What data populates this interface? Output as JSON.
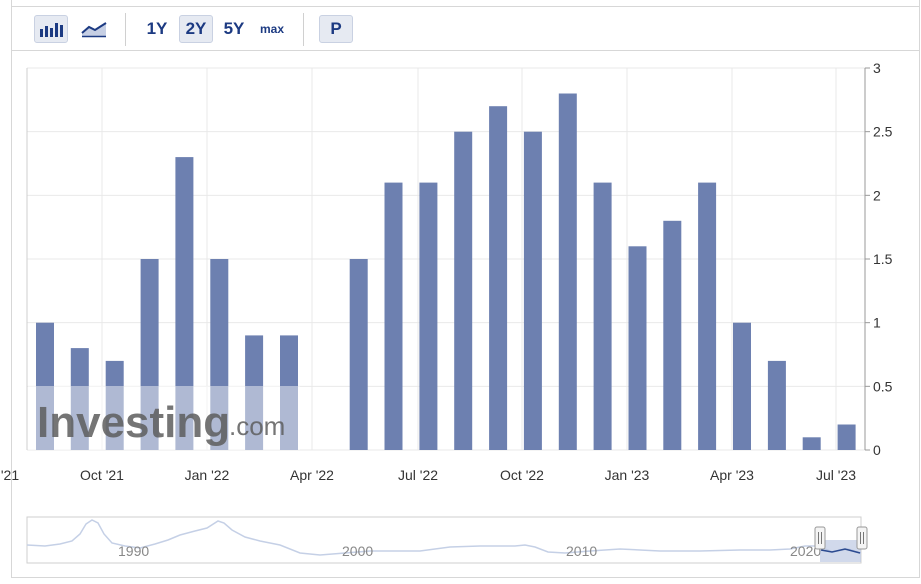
{
  "toolbar": {
    "view_buttons": [
      {
        "name": "bar-chart-view",
        "icon": "bar-chart-icon",
        "active": true
      },
      {
        "name": "line-chart-view",
        "icon": "line-chart-icon",
        "active": false
      }
    ],
    "ranges": [
      {
        "label": "1Y",
        "active": false
      },
      {
        "label": "2Y",
        "active": true
      },
      {
        "label": "5Y",
        "active": false
      },
      {
        "label": "max",
        "active": false
      }
    ],
    "extra_label": "P"
  },
  "watermark": {
    "brand": "Investing",
    "suffix": ".com"
  },
  "colors": {
    "bar": "#6d80b0",
    "grid": "#e9e9e9",
    "accent": "#1c3a82"
  },
  "chart_data": {
    "type": "bar",
    "x_ticks": [
      "'21",
      "Oct '21",
      "Jan '22",
      "Apr '22",
      "Jul '22",
      "Oct '22",
      "Jan '23",
      "Apr '23",
      "Jul '23"
    ],
    "values": [
      1.0,
      0.8,
      0.7,
      1.5,
      2.3,
      1.5,
      0.9,
      0.9,
      0.0,
      1.5,
      2.1,
      2.1,
      2.5,
      2.7,
      2.5,
      2.8,
      2.1,
      1.6,
      1.8,
      2.1,
      1.0,
      0.7,
      0.1,
      0.2
    ],
    "y_ticks": [
      "3",
      "2.5",
      "2",
      "1.5",
      "1",
      "0.5",
      "0"
    ],
    "ylim": [
      0,
      3
    ],
    "grid": true,
    "y_axis_side": "right"
  },
  "navigator": {
    "years": [
      "1990",
      "2000",
      "2010",
      "2020"
    ]
  }
}
